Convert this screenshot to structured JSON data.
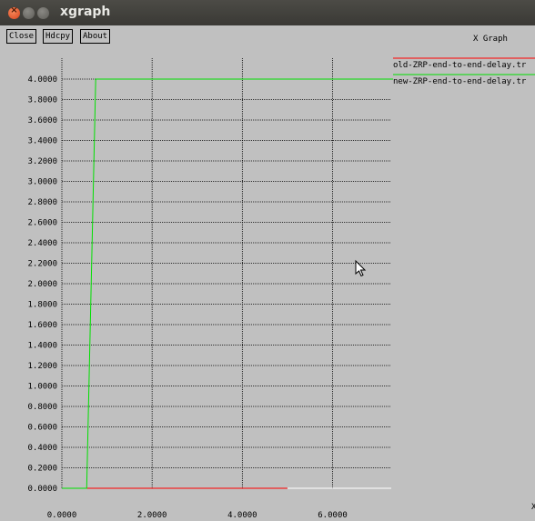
{
  "window": {
    "title": "xgraph"
  },
  "toolbar": {
    "close_label": "Close",
    "hdcpy_label": "Hdcpy",
    "about_label": "About"
  },
  "graph_title": "X Graph",
  "edge_glyph": "X",
  "chart_data": {
    "type": "line",
    "title": "X Graph",
    "xlabel": "",
    "ylabel": "",
    "xlim": [
      0,
      7.3
    ],
    "ylim": [
      0,
      4.0
    ],
    "grid": true,
    "legend": "right",
    "x_ticks": [
      "0.0000",
      "2.0000",
      "4.0000",
      "6.0000"
    ],
    "x_tick_values": [
      0,
      2,
      4,
      6
    ],
    "y_ticks": [
      "0.0000",
      "0.2000",
      "0.4000",
      "0.6000",
      "0.8000",
      "1.0000",
      "1.2000",
      "1.4000",
      "1.6000",
      "1.8000",
      "2.0000",
      "2.2000",
      "2.4000",
      "2.6000",
      "2.8000",
      "3.0000",
      "3.2000",
      "3.4000",
      "3.6000",
      "3.8000",
      "4.0000"
    ],
    "y_tick_values": [
      0,
      0.2,
      0.4,
      0.6,
      0.8,
      1.0,
      1.2,
      1.4,
      1.6,
      1.8,
      2.0,
      2.2,
      2.4,
      2.6,
      2.8,
      3.0,
      3.2,
      3.4,
      3.6,
      3.8,
      4.0
    ],
    "series": [
      {
        "name": "old-ZRP-end-to-end-delay.tr",
        "color": "#ff0000",
        "x": [
          0.55,
          5.0
        ],
        "y": [
          0.0,
          0.0
        ]
      },
      {
        "name": "new-ZRP-end-to-end-delay.tr",
        "color": "#00e000",
        "x": [
          0.0,
          0.55,
          0.75,
          7.3
        ],
        "y": [
          0.0,
          0.0,
          4.0,
          4.0
        ]
      }
    ]
  }
}
